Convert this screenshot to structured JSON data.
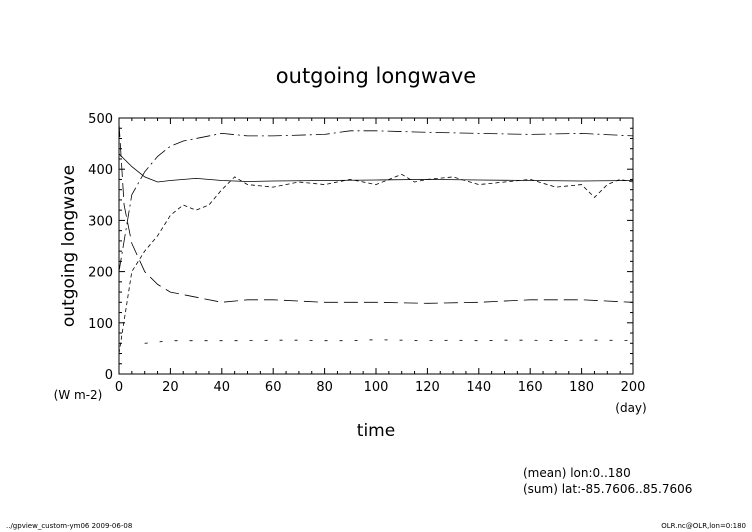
{
  "chart_data": {
    "type": "line",
    "title": "outgoing longwave",
    "xlabel": "time",
    "ylabel": "outgoing longwave",
    "x_unit": "(day)",
    "y_unit": "(W m-2)",
    "xlim": [
      0,
      200
    ],
    "ylim": [
      0,
      500
    ],
    "x_ticks": [
      0,
      20,
      40,
      60,
      80,
      100,
      120,
      140,
      160,
      180,
      200
    ],
    "y_ticks": [
      0,
      100,
      200,
      300,
      400,
      500
    ],
    "grid": false,
    "series": [
      {
        "style": "solid",
        "x": [
          0,
          2,
          5,
          10,
          15,
          20,
          30,
          40,
          50,
          60,
          80,
          100,
          120,
          140,
          160,
          180,
          200
        ],
        "y": [
          430,
          420,
          405,
          385,
          375,
          378,
          382,
          378,
          376,
          377,
          378,
          379,
          380,
          379,
          378,
          377,
          378
        ]
      },
      {
        "style": "dashdot",
        "x": [
          0,
          5,
          10,
          15,
          20,
          25,
          30,
          40,
          50,
          60,
          80,
          90,
          100,
          120,
          140,
          160,
          180,
          200
        ],
        "y": [
          200,
          350,
          395,
          425,
          445,
          455,
          460,
          470,
          465,
          465,
          468,
          475,
          475,
          472,
          470,
          468,
          470,
          465
        ]
      },
      {
        "style": "dashed",
        "x": [
          0,
          2,
          5,
          10,
          15,
          20,
          30,
          40,
          50,
          60,
          80,
          100,
          120,
          140,
          160,
          180,
          200
        ],
        "y": [
          490,
          330,
          255,
          200,
          175,
          160,
          150,
          140,
          145,
          145,
          140,
          140,
          138,
          140,
          145,
          145,
          140
        ]
      },
      {
        "style": "shortdash",
        "x": [
          0,
          5,
          10,
          15,
          20,
          25,
          30,
          35,
          40,
          45,
          50,
          60,
          70,
          80,
          90,
          100,
          110,
          115,
          120,
          130,
          140,
          150,
          160,
          170,
          180,
          185,
          190,
          195,
          200
        ],
        "y": [
          40,
          200,
          240,
          270,
          310,
          330,
          320,
          330,
          360,
          385,
          370,
          365,
          375,
          370,
          380,
          370,
          390,
          375,
          380,
          385,
          370,
          375,
          380,
          365,
          370,
          345,
          370,
          380,
          375
        ]
      },
      {
        "style": "dotted",
        "x": [
          10,
          20,
          30,
          40,
          50,
          60,
          70,
          80,
          90,
          100,
          110,
          120,
          130,
          140,
          150,
          160,
          170,
          180,
          190,
          200
        ],
        "y": [
          60,
          65,
          65,
          65,
          65,
          66,
          66,
          65,
          65,
          67,
          66,
          65,
          66,
          65,
          66,
          66,
          65,
          66,
          66,
          65
        ]
      }
    ]
  },
  "notes": {
    "mean": "(mean) lon:0..180",
    "sum": "(sum) lat:-85.7606..85.7606"
  },
  "footer": {
    "left": "../gpview_custom-ym06  2009-06-08",
    "right": "OLR.nc@OLR,lon=0:180"
  }
}
